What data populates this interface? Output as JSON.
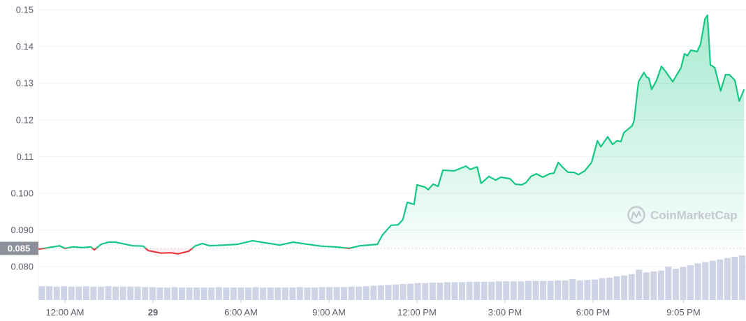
{
  "chart_data": {
    "type": "area",
    "title": "",
    "xlabel": "",
    "ylabel": "",
    "ylim": [
      0.075,
      0.15
    ],
    "grid": true,
    "reference_price": 0.085,
    "reference_label": "0.085",
    "colors": {
      "up": "#16c784",
      "down": "#ea3943",
      "volume": "#cfd3e6",
      "reference_tag": "#8d909a"
    },
    "y_ticks": [
      {
        "value": 0.15,
        "label": "0.15"
      },
      {
        "value": 0.14,
        "label": "0.14"
      },
      {
        "value": 0.13,
        "label": "0.13"
      },
      {
        "value": 0.12,
        "label": "0.12"
      },
      {
        "value": 0.11,
        "label": "0.11"
      },
      {
        "value": 0.1,
        "label": "0.100"
      },
      {
        "value": 0.09,
        "label": "0.090"
      },
      {
        "value": 0.08,
        "label": "0.080"
      }
    ],
    "x_ticks": [
      {
        "time": "00:00",
        "label": "12:00 AM",
        "bold": false
      },
      {
        "time": "03:00",
        "label": "29",
        "bold": true
      },
      {
        "time": "06:00",
        "label": "6:00 AM",
        "bold": false
      },
      {
        "time": "09:00",
        "label": "9:00 AM",
        "bold": false
      },
      {
        "time": "12:00",
        "label": "12:00 PM",
        "bold": false
      },
      {
        "time": "15:00",
        "label": "3:00 PM",
        "bold": false
      },
      {
        "time": "18:00",
        "label": "6:00 PM",
        "bold": false
      },
      {
        "time": "21:05",
        "label": "9:05 PM",
        "bold": false
      }
    ],
    "series": [
      {
        "points": [
          [
            "23:06",
            0.0848
          ],
          [
            "23:27",
            0.0852
          ],
          [
            "23:49",
            0.0857
          ],
          [
            "00:00",
            0.085
          ],
          [
            "00:17",
            0.0854
          ],
          [
            "00:36",
            0.0852
          ],
          [
            "00:53",
            0.0854
          ],
          [
            "01:00",
            0.0846
          ],
          [
            "01:14",
            0.0861
          ],
          [
            "01:29",
            0.0867
          ],
          [
            "01:43",
            0.0867
          ],
          [
            "01:57",
            0.0863
          ],
          [
            "02:19",
            0.0857
          ],
          [
            "02:40",
            0.0856
          ],
          [
            "02:50",
            0.0844
          ],
          [
            "03:16",
            0.0837
          ],
          [
            "03:37",
            0.0838
          ],
          [
            "03:51",
            0.0835
          ],
          [
            "04:13",
            0.0842
          ],
          [
            "04:27",
            0.0857
          ],
          [
            "04:41",
            0.0863
          ],
          [
            "04:56",
            0.0857
          ],
          [
            "05:24",
            0.0859
          ],
          [
            "05:53",
            0.0861
          ],
          [
            "06:24",
            0.0871
          ],
          [
            "06:50",
            0.0865
          ],
          [
            "07:19",
            0.0859
          ],
          [
            "07:47",
            0.0867
          ],
          [
            "08:16",
            0.0861
          ],
          [
            "08:44",
            0.0856
          ],
          [
            "09:13",
            0.0854
          ],
          [
            "09:41",
            0.085
          ],
          [
            "10:03",
            0.0857
          ],
          [
            "10:39",
            0.0861
          ],
          [
            "10:49",
            0.0886
          ],
          [
            "11:07",
            0.0913
          ],
          [
            "11:21",
            0.0914
          ],
          [
            "11:31",
            0.0928
          ],
          [
            "11:40",
            0.0975
          ],
          [
            "11:54",
            0.097
          ],
          [
            "12:00",
            0.1023
          ],
          [
            "12:16",
            0.1017
          ],
          [
            "12:23",
            0.101
          ],
          [
            "12:33",
            0.1025
          ],
          [
            "12:43",
            0.1019
          ],
          [
            "12:53",
            0.1063
          ],
          [
            "13:16",
            0.1061
          ],
          [
            "13:40",
            0.1074
          ],
          [
            "13:49",
            0.1065
          ],
          [
            "14:03",
            0.1072
          ],
          [
            "14:11",
            0.1027
          ],
          [
            "14:27",
            0.1046
          ],
          [
            "14:41",
            0.1036
          ],
          [
            "14:51",
            0.1044
          ],
          [
            "15:10",
            0.104
          ],
          [
            "15:21",
            0.1025
          ],
          [
            "15:34",
            0.1023
          ],
          [
            "15:43",
            0.1029
          ],
          [
            "15:53",
            0.1046
          ],
          [
            "16:04",
            0.1053
          ],
          [
            "16:17",
            0.1044
          ],
          [
            "16:31",
            0.1053
          ],
          [
            "16:40",
            0.1055
          ],
          [
            "16:49",
            0.1084
          ],
          [
            "16:57",
            0.1072
          ],
          [
            "17:09",
            0.1057
          ],
          [
            "17:21",
            0.1057
          ],
          [
            "17:30",
            0.1051
          ],
          [
            "17:43",
            0.1061
          ],
          [
            "17:57",
            0.1084
          ],
          [
            "18:09",
            0.1143
          ],
          [
            "18:16",
            0.1127
          ],
          [
            "18:30",
            0.1154
          ],
          [
            "18:40",
            0.1133
          ],
          [
            "18:49",
            0.1143
          ],
          [
            "18:57",
            0.1141
          ],
          [
            "19:03",
            0.1165
          ],
          [
            "19:20",
            0.1184
          ],
          [
            "19:24",
            0.1198
          ],
          [
            "19:33",
            0.1304
          ],
          [
            "19:44",
            0.1329
          ],
          [
            "19:50",
            0.1316
          ],
          [
            "19:54",
            0.1314
          ],
          [
            "20:00",
            0.1283
          ],
          [
            "20:10",
            0.1308
          ],
          [
            "20:20",
            0.1346
          ],
          [
            "20:29",
            0.1331
          ],
          [
            "20:43",
            0.1304
          ],
          [
            "21:00",
            0.1342
          ],
          [
            "21:07",
            0.138
          ],
          [
            "21:13",
            0.1375
          ],
          [
            "21:20",
            0.139
          ],
          [
            "21:33",
            0.1386
          ],
          [
            "21:40",
            0.1407
          ],
          [
            "21:49",
            0.1475
          ],
          [
            "21:54",
            0.1485
          ],
          [
            "22:00",
            0.135
          ],
          [
            "22:09",
            0.1342
          ],
          [
            "22:21",
            0.1279
          ],
          [
            "22:31",
            0.1323
          ],
          [
            "22:39",
            0.1323
          ],
          [
            "22:50",
            0.1308
          ],
          [
            "22:59",
            0.1251
          ],
          [
            "23:09",
            0.1283
          ]
        ]
      }
    ],
    "volume_relative": [
      31,
      31,
      30,
      31,
      30,
      30,
      31,
      30,
      30,
      31,
      30,
      30,
      30,
      30,
      29,
      29,
      28,
      28,
      29,
      28,
      28,
      28,
      28,
      28,
      29,
      28,
      28,
      28,
      28,
      29,
      28,
      28,
      28,
      28,
      28,
      29,
      28,
      28,
      29,
      29,
      29,
      29,
      30,
      30,
      31,
      32,
      33,
      34,
      35,
      36,
      37,
      38,
      38,
      39,
      39,
      40,
      40,
      40,
      41,
      41,
      41,
      41,
      42,
      42,
      42,
      42,
      43,
      43,
      43,
      43,
      44,
      44,
      47,
      44,
      45,
      46,
      49,
      50,
      53,
      55,
      58,
      68,
      62,
      64,
      66,
      75,
      70,
      74,
      78,
      82,
      85,
      88,
      91,
      94,
      97,
      100
    ]
  },
  "watermark": {
    "text": "CoinMarketCap",
    "icon": "coinmarketcap-logo-icon"
  }
}
